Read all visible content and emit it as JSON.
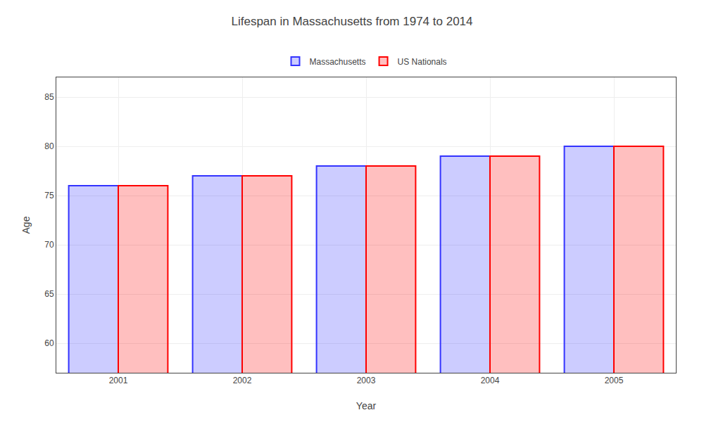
{
  "chart_data": {
    "type": "bar",
    "title": "Lifespan in Massachusetts from 1974 to 2014",
    "xlabel": "Year",
    "ylabel": "Age",
    "categories": [
      "2001",
      "2002",
      "2003",
      "2004",
      "2005"
    ],
    "series": [
      {
        "name": "Massachusetts",
        "color": "#3333ff",
        "values": [
          76,
          77,
          78,
          79,
          80
        ]
      },
      {
        "name": "US Nationals",
        "color": "#ff0000",
        "values": [
          76,
          77,
          78,
          79,
          80
        ]
      }
    ],
    "ylim": [
      57,
      87
    ],
    "yticks": [
      60,
      65,
      70,
      75,
      80,
      85
    ],
    "grid": true,
    "legend": "upper center"
  }
}
